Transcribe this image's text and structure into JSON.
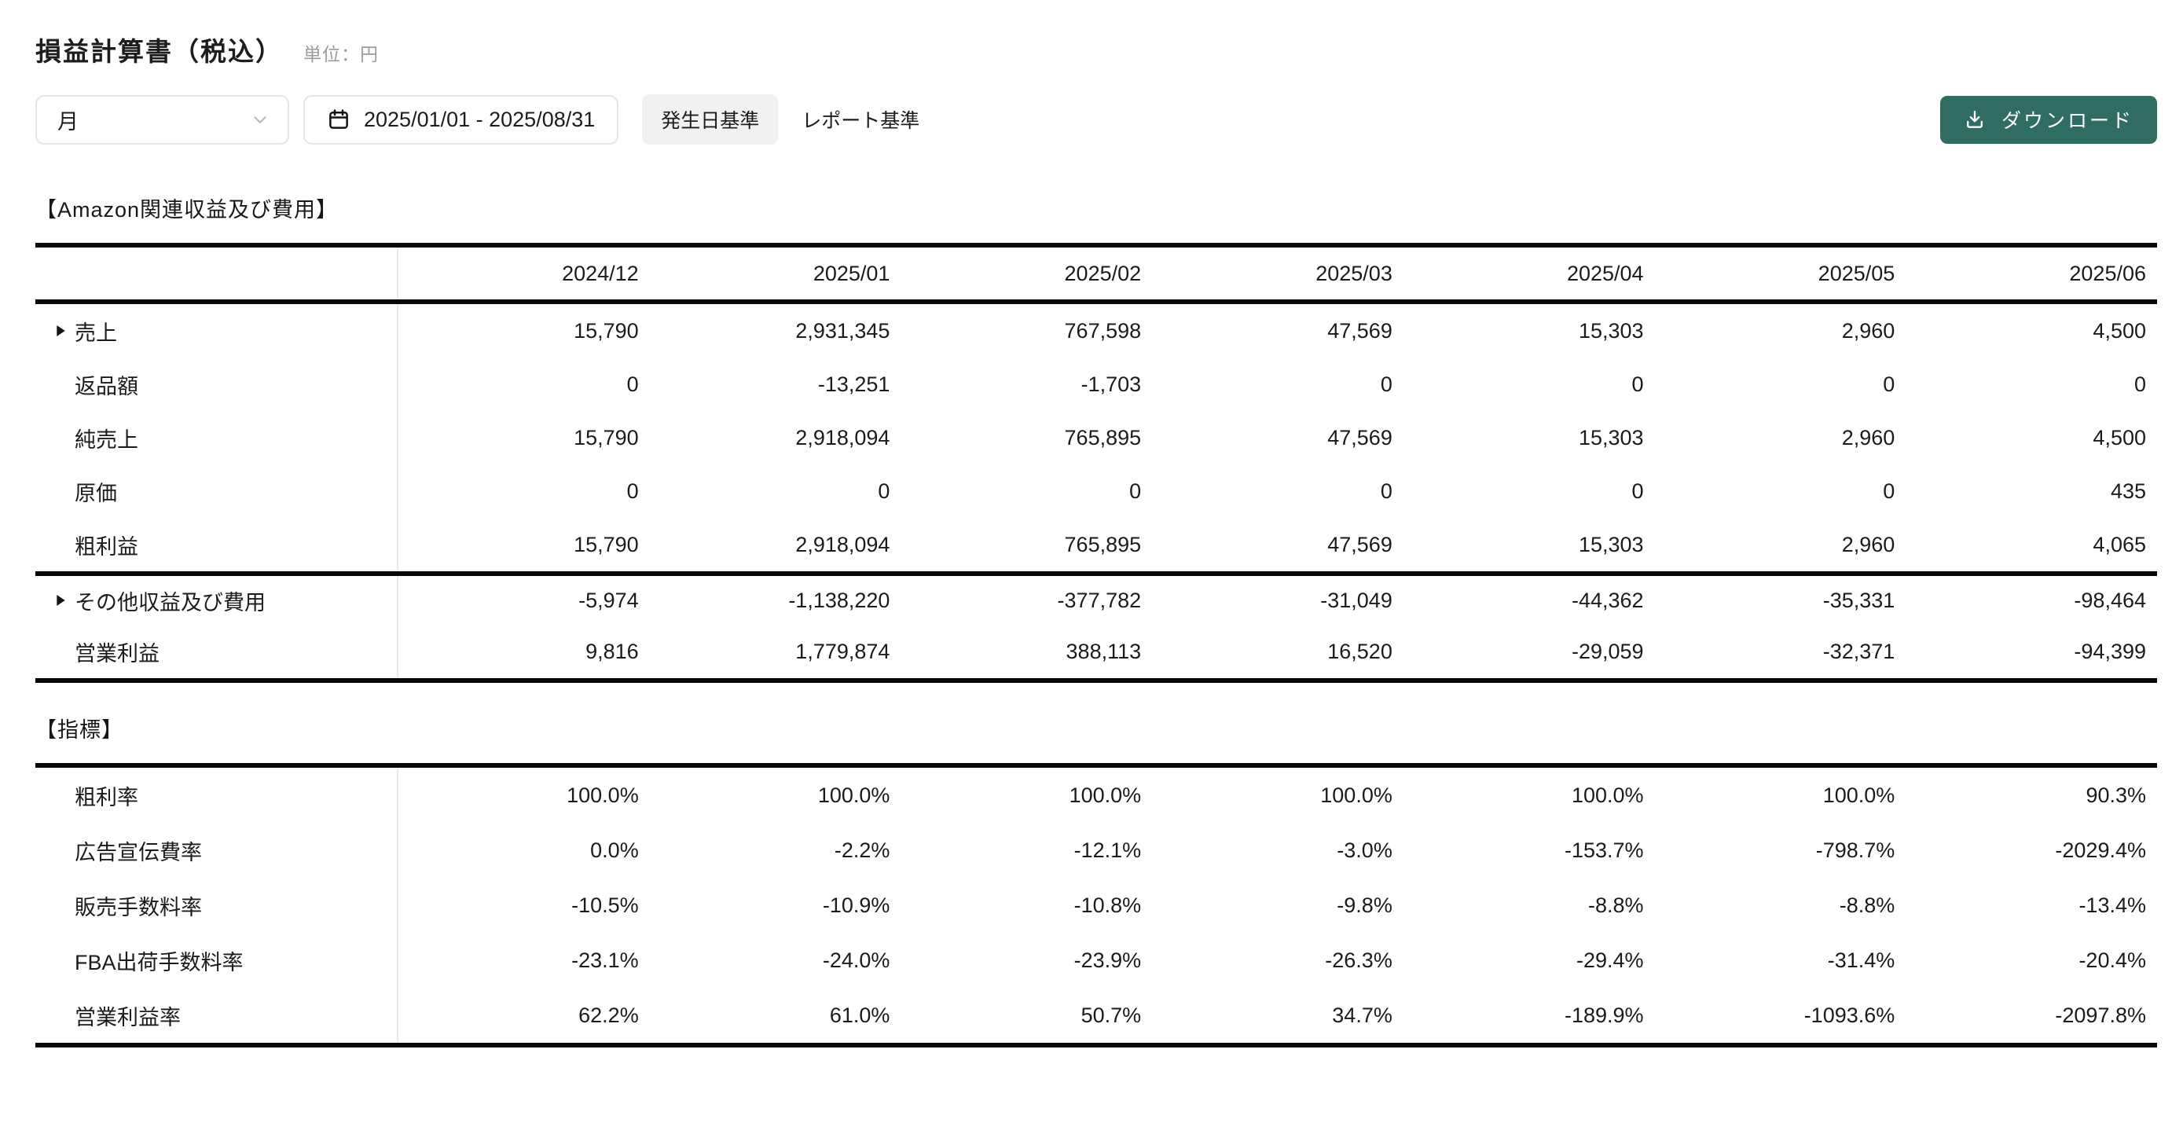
{
  "header": {
    "title": "損益計算書（税込）",
    "unit": "単位：円"
  },
  "toolbar": {
    "period_select_value": "月",
    "date_range": "2025/01/01 - 2025/08/31",
    "basis_options": [
      {
        "label": "発生日基準",
        "selected": true
      },
      {
        "label": "レポート基準",
        "selected": false
      }
    ],
    "download_label": "ダウンロード"
  },
  "colors": {
    "accent": "#2f6d62",
    "selected_pill_bg": "#f1f1f1",
    "table_border": "#070707",
    "divider": "#ebebeb",
    "muted_text": "#9b9b9b"
  },
  "amazon_section": {
    "title": "【Amazon関連収益及び費用】",
    "columns": [
      "2024/12",
      "2025/01",
      "2025/02",
      "2025/03",
      "2025/04",
      "2025/05",
      "2025/06"
    ],
    "rows": [
      {
        "label": "売上",
        "expandable": true,
        "group": 1,
        "values": [
          "15,790",
          "2,931,345",
          "767,598",
          "47,569",
          "15,303",
          "2,960",
          "4,500"
        ]
      },
      {
        "label": "返品額",
        "expandable": false,
        "group": 1,
        "values": [
          "0",
          "-13,251",
          "-1,703",
          "0",
          "0",
          "0",
          "0"
        ]
      },
      {
        "label": "純売上",
        "expandable": false,
        "group": 1,
        "values": [
          "15,790",
          "2,918,094",
          "765,895",
          "47,569",
          "15,303",
          "2,960",
          "4,500"
        ]
      },
      {
        "label": "原価",
        "expandable": false,
        "group": 1,
        "values": [
          "0",
          "0",
          "0",
          "0",
          "0",
          "0",
          "435"
        ]
      },
      {
        "label": "粗利益",
        "expandable": false,
        "group": 1,
        "values": [
          "15,790",
          "2,918,094",
          "765,895",
          "47,569",
          "15,303",
          "2,960",
          "4,065"
        ]
      },
      {
        "label": "その他収益及び費用",
        "expandable": true,
        "group": 2,
        "values": [
          "-5,974",
          "-1,138,220",
          "-377,782",
          "-31,049",
          "-44,362",
          "-35,331",
          "-98,464"
        ]
      },
      {
        "label": "営業利益",
        "expandable": false,
        "group": 2,
        "values": [
          "9,816",
          "1,779,874",
          "388,113",
          "16,520",
          "-29,059",
          "-32,371",
          "-94,399"
        ]
      }
    ]
  },
  "metrics_section": {
    "title": "【指標】",
    "rows": [
      {
        "label": "粗利率",
        "expandable": false,
        "group": 1,
        "values": [
          "100.0%",
          "100.0%",
          "100.0%",
          "100.0%",
          "100.0%",
          "100.0%",
          "90.3%"
        ]
      },
      {
        "label": "広告宣伝費率",
        "expandable": false,
        "group": 1,
        "values": [
          "0.0%",
          "-2.2%",
          "-12.1%",
          "-3.0%",
          "-153.7%",
          "-798.7%",
          "-2029.4%"
        ]
      },
      {
        "label": "販売手数料率",
        "expandable": false,
        "group": 1,
        "values": [
          "-10.5%",
          "-10.9%",
          "-10.8%",
          "-9.8%",
          "-8.8%",
          "-8.8%",
          "-13.4%"
        ]
      },
      {
        "label": "FBA出荷手数料率",
        "expandable": false,
        "group": 1,
        "values": [
          "-23.1%",
          "-24.0%",
          "-23.9%",
          "-26.3%",
          "-29.4%",
          "-31.4%",
          "-20.4%"
        ]
      },
      {
        "label": "営業利益率",
        "expandable": false,
        "group": 1,
        "values": [
          "62.2%",
          "61.0%",
          "50.7%",
          "34.7%",
          "-189.9%",
          "-1093.6%",
          "-2097.8%"
        ]
      }
    ]
  }
}
